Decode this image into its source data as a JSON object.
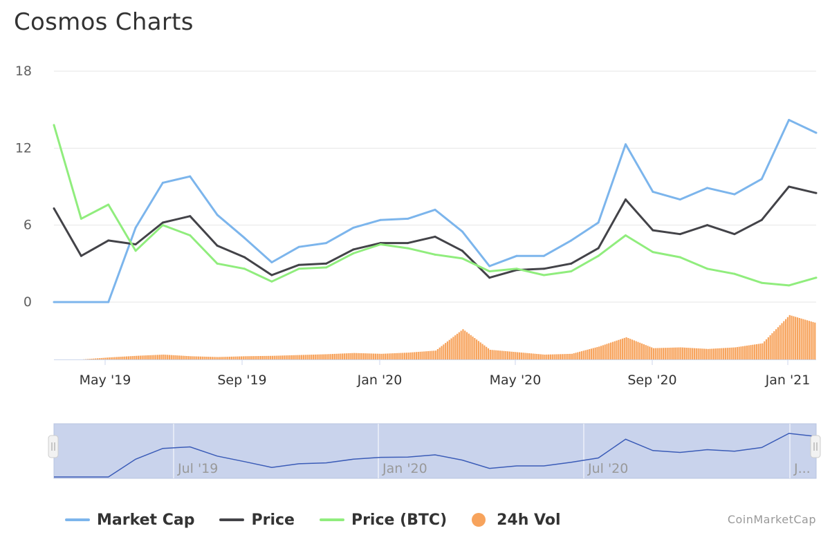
{
  "title": "Cosmos Charts",
  "credits": "CoinMarketCap",
  "colors": {
    "market_cap": "#7cb5ec",
    "price": "#434348",
    "price_btc": "#90ed7d",
    "volume": "#f7a35c",
    "navigator_fill": "#c9d3ec",
    "navigator_line": "#3a5bb7",
    "grid": "#e6e6e6"
  },
  "legend": [
    {
      "label": "Market Cap",
      "color": "#7cb5ec",
      "symbol": "line"
    },
    {
      "label": "Price",
      "color": "#434348",
      "symbol": "line"
    },
    {
      "label": "Price (BTC)",
      "color": "#90ed7d",
      "symbol": "line"
    },
    {
      "label": "24h Vol",
      "color": "#f7a35c",
      "symbol": "circle"
    }
  ],
  "chart_data": {
    "type": "line",
    "title": "Cosmos Charts",
    "ylim": [
      0,
      18
    ],
    "yticks": [
      "0",
      "6",
      "12",
      "18"
    ],
    "xticks": [
      "May '19",
      "Sep '19",
      "Jan '20",
      "May '20",
      "Sep '20",
      "Jan '21"
    ],
    "navigator_ticks": [
      "Jul '19",
      "Jan '20",
      "Jul '20",
      "J..."
    ],
    "x": [
      "Mar '19",
      "Apr '19",
      "Apr '19",
      "May '19",
      "Jun '19",
      "Jun '19",
      "Jul '19",
      "Aug '19",
      "Sep '19",
      "Oct '19",
      "Nov '19",
      "Dec '19",
      "Jan '20",
      "Feb '20",
      "Mar '20",
      "Mar '20",
      "Apr '20",
      "May '20",
      "Jun '20",
      "Jul '20",
      "Aug '20",
      "Aug '20",
      "Sep '20",
      "Oct '20",
      "Nov '20",
      "Dec '20",
      "Dec '20",
      "Jan '21",
      "Jan '21"
    ],
    "series": [
      {
        "name": "Market Cap",
        "values": [
          0,
          0,
          0,
          5.8,
          9.3,
          9.8,
          6.8,
          5.0,
          3.1,
          4.3,
          4.6,
          5.8,
          6.4,
          6.5,
          7.2,
          5.5,
          2.8,
          3.6,
          3.6,
          4.8,
          6.2,
          12.3,
          8.6,
          8.0,
          8.9,
          8.4,
          9.6,
          14.2,
          13.2
        ]
      },
      {
        "name": "Price",
        "values": [
          7.3,
          3.6,
          4.8,
          4.5,
          6.2,
          6.7,
          4.4,
          3.5,
          2.1,
          2.9,
          3.0,
          4.1,
          4.6,
          4.6,
          5.1,
          4.0,
          1.9,
          2.5,
          2.6,
          3.0,
          4.2,
          8.0,
          5.6,
          5.3,
          6.0,
          5.3,
          6.4,
          9.0,
          8.5
        ]
      },
      {
        "name": "Price (BTC)",
        "values": [
          13.8,
          6.5,
          7.6,
          4.0,
          6.0,
          5.2,
          3.0,
          2.6,
          1.6,
          2.6,
          2.7,
          3.8,
          4.5,
          4.2,
          3.7,
          3.4,
          2.4,
          2.6,
          2.1,
          2.4,
          3.6,
          5.2,
          3.9,
          3.5,
          2.6,
          2.2,
          1.5,
          1.3,
          1.9
        ]
      }
    ],
    "volume_series": {
      "name": "24h Vol",
      "values": [
        0,
        0,
        0.5,
        0.9,
        1.2,
        0.8,
        0.6,
        0.8,
        0.9,
        1.1,
        1.3,
        1.6,
        1.4,
        1.7,
        2.2,
        7.5,
        2.4,
        1.8,
        1.2,
        1.4,
        3.2,
        5.5,
        2.8,
        3.0,
        2.6,
        3.0,
        4.0,
        11.0,
        9.0
      ]
    }
  }
}
